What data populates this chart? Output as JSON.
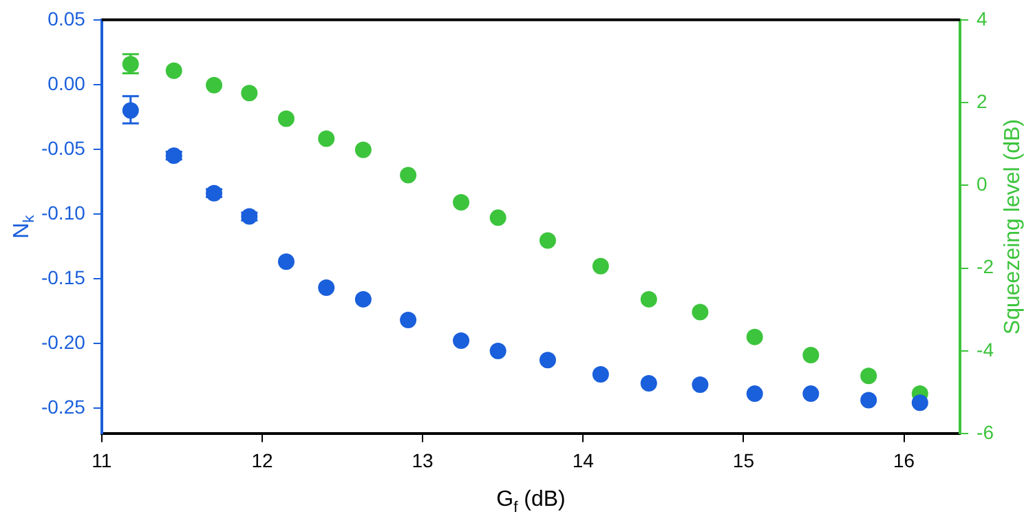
{
  "chart_data": {
    "type": "scatter",
    "xlabel": "G$_{f}$ (dB)",
    "ylabel": "N$_{k}$",
    "y2label": "Squeezeing level (dB)",
    "x": [
      11.18,
      11.45,
      11.7,
      11.92,
      12.15,
      12.4,
      12.63,
      12.91,
      13.24,
      13.47,
      13.78,
      14.11,
      14.41,
      14.73,
      15.07,
      15.42,
      15.78,
      16.1
    ],
    "series": [
      {
        "color": "#1a5fdb",
        "values": [
          -0.02,
          -0.055,
          -0.084,
          -0.102,
          -0.137,
          -0.157,
          -0.166,
          -0.182,
          -0.198,
          -0.206,
          -0.213,
          -0.224,
          -0.231,
          -0.232,
          -0.239,
          -0.239,
          -0.244,
          -0.246
        ],
        "errors": [
          [
            -0.03,
            -0.009
          ],
          0.003,
          0.003,
          0.003,
          null,
          null,
          null,
          null,
          null,
          null,
          null,
          null,
          null,
          null,
          null,
          null,
          null,
          null
        ]
      },
      {
        "color": "#3cc43c",
        "axis": "y2",
        "values": [
          2.93,
          2.77,
          2.42,
          2.23,
          1.61,
          1.13,
          0.86,
          0.25,
          -0.41,
          -0.78,
          -1.33,
          -1.95,
          -2.75,
          -3.06,
          -3.66,
          -4.1,
          -4.6,
          -5.03
        ],
        "errors": [
          [
            2.71,
            3.17
          ],
          null,
          null,
          null,
          null,
          null,
          null,
          null,
          null,
          null,
          null,
          null,
          null,
          null,
          null,
          null,
          null,
          null
        ]
      }
    ],
    "xlim": [
      11,
      16.35
    ],
    "xticks": [
      11,
      12,
      13,
      14,
      15,
      16
    ],
    "ylim": [
      -0.27,
      0.05
    ],
    "yticks": [
      {
        "value": -0.25,
        "label": "-0.25"
      },
      {
        "value": -0.2,
        "label": "-0.20"
      },
      {
        "value": -0.15,
        "label": "-0.15"
      },
      {
        "value": -0.1,
        "label": "-0.10"
      },
      {
        "value": -0.05,
        "label": "-0.05"
      },
      {
        "value": 0,
        "label": "0.00"
      },
      {
        "value": 0.05,
        "label": "0.05"
      }
    ],
    "y2lim": [
      -6,
      4
    ],
    "y2ticks": [
      -6,
      -4,
      -2,
      0,
      2,
      4
    ],
    "grid": false,
    "legend": false,
    "marker": "circle"
  }
}
